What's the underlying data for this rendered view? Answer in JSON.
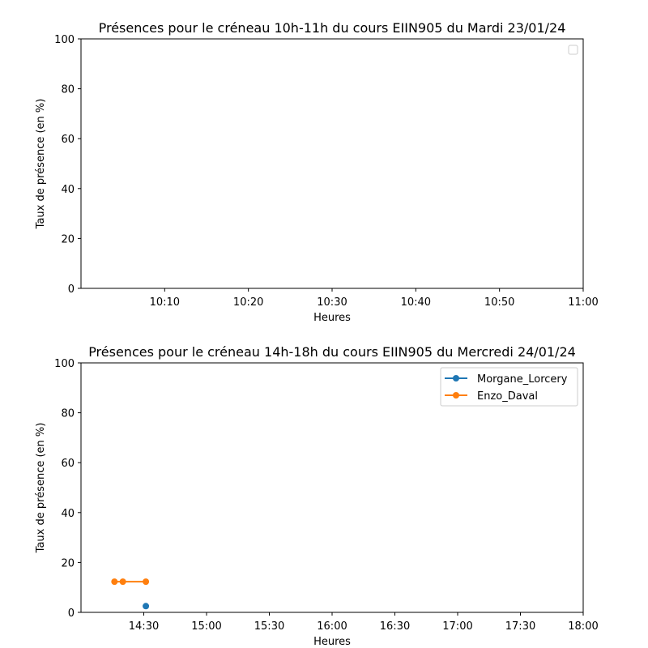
{
  "chart_data": [
    {
      "type": "line",
      "title": "Présences pour le créneau 10h-11h du cours EIIN905 du Mardi 23/01/24",
      "xlabel": "Heures",
      "ylabel": "Taux de présence (en %)",
      "xlim": [
        "10:00",
        "11:00"
      ],
      "ylim": [
        0,
        100
      ],
      "xticks": [
        "10:10",
        "10:20",
        "10:30",
        "10:40",
        "10:50",
        "11:00"
      ],
      "yticks": [
        "0",
        "20",
        "40",
        "60",
        "80",
        "100"
      ],
      "legend": "upper right",
      "series": []
    },
    {
      "type": "line",
      "title": "Présences pour le créneau 14h-18h du cours EIIN905 du Mercredi 24/01/24",
      "xlabel": "Heures",
      "ylabel": "Taux de présence (en %)",
      "xlim": [
        "14:00",
        "18:00"
      ],
      "ylim": [
        0,
        100
      ],
      "xticks": [
        "14:30",
        "15:00",
        "15:30",
        "16:00",
        "16:30",
        "17:00",
        "17:30",
        "18:00"
      ],
      "yticks": [
        "0",
        "20",
        "40",
        "60",
        "80",
        "100"
      ],
      "legend": "upper right",
      "series": [
        {
          "name": "Morgane_Lorcery",
          "color": "#1f77b4",
          "points": [
            {
              "x": "14:31",
              "y": 2.5
            }
          ]
        },
        {
          "name": "Enzo_Daval",
          "color": "#ff7f0e",
          "points": [
            {
              "x": "14:16",
              "y": 12.3
            },
            {
              "x": "14:20",
              "y": 12.3
            },
            {
              "x": "14:31",
              "y": 12.3
            }
          ]
        }
      ]
    }
  ]
}
